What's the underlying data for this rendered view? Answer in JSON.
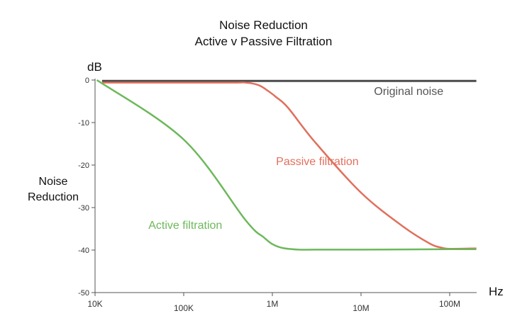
{
  "chart_data": {
    "type": "line",
    "title": "Noise Reduction",
    "subtitle": "Active v Passive Filtration",
    "ylabel": "Noise Reduction",
    "yunit": "dB",
    "xunit": "Hz",
    "x_scale": "log",
    "xlim": [
      10000,
      200000000
    ],
    "ylim": [
      -50,
      0
    ],
    "grid": false,
    "x_ticks": [
      {
        "value": 10000,
        "label": "10K"
      },
      {
        "value": 100000,
        "label": "100K"
      },
      {
        "value": 1000000,
        "label": "1M"
      },
      {
        "value": 10000000,
        "label": "10M"
      },
      {
        "value": 100000000,
        "label": "100M"
      }
    ],
    "y_ticks": [
      {
        "value": 0,
        "label": "0"
      },
      {
        "value": -10,
        "label": "-10"
      },
      {
        "value": -20,
        "label": "-20"
      },
      {
        "value": -30,
        "label": "-30"
      },
      {
        "value": -40,
        "label": "-40"
      },
      {
        "value": -50,
        "label": "-50"
      }
    ],
    "series": [
      {
        "name": "Original noise",
        "color": "#4a4a4a",
        "x": [
          12000,
          200000000
        ],
        "y": [
          -0.2,
          -0.2
        ]
      },
      {
        "name": "Passive filtration",
        "color": "#e0705e",
        "x": [
          12000,
          300000,
          500000,
          700000,
          900000,
          1100000,
          1500000,
          3000000,
          10000000,
          30000000,
          60000000,
          80000000,
          100000000,
          200000000
        ],
        "y": [
          -0.6,
          -0.6,
          -0.6,
          -1.2,
          -2.6,
          -4.0,
          -6.5,
          -14.5,
          -26.5,
          -34.5,
          -38.5,
          -39.4,
          -39.7,
          -39.6
        ]
      },
      {
        "name": "Active filtration",
        "color": "#6db85b",
        "x": [
          10500,
          100000,
          500000,
          800000,
          1000000,
          1300000,
          2000000,
          3000000,
          10000000,
          100000000,
          200000000
        ],
        "y": [
          0,
          -14.0,
          -33.0,
          -37.0,
          -38.6,
          -39.5,
          -39.9,
          -39.9,
          -39.9,
          -39.8,
          -39.8
        ]
      }
    ],
    "annotations": [
      {
        "text": "Original noise",
        "x": 14000000,
        "y": -3.5,
        "color": "#555555"
      },
      {
        "text": "Passive filtration",
        "x": 1100000,
        "y": -20.0,
        "color": "#e0705e"
      },
      {
        "text": "Active filtration",
        "x": 40000,
        "y": -35.0,
        "color": "#6db85b"
      }
    ]
  }
}
